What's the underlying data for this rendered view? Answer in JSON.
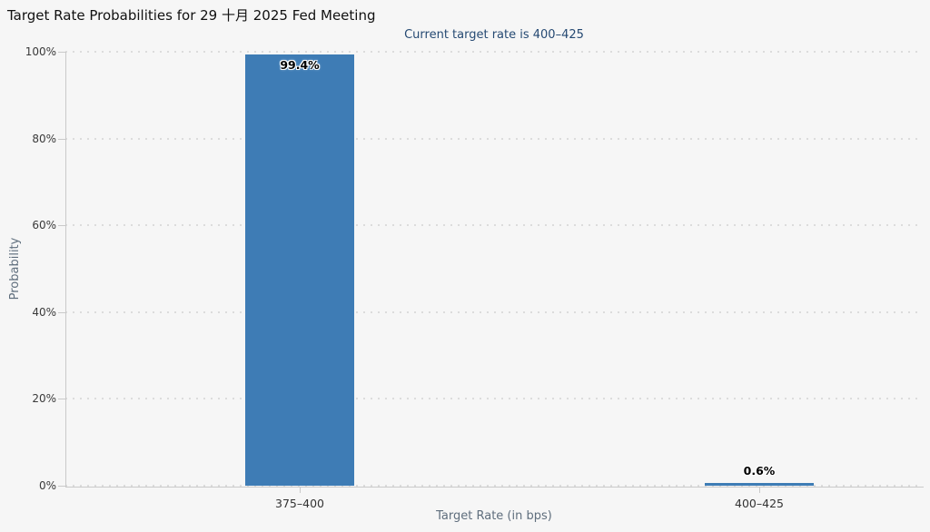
{
  "chart_data": {
    "type": "bar",
    "title": "Target Rate Probabilities for 29 十月 2025 Fed Meeting",
    "subtitle": "Current target rate is 400–425",
    "categories": [
      "375–400",
      "400–425"
    ],
    "values": [
      99.4,
      0.6
    ],
    "value_labels": [
      "99.4%",
      "0.6%"
    ],
    "xlabel": "Target Rate (in bps)",
    "ylabel": "Probability",
    "ylim": [
      0,
      100
    ],
    "ytick_step": 20,
    "ytick_labels": [
      "0%",
      "20%",
      "40%",
      "60%",
      "80%",
      "100%"
    ],
    "grid": "horizontal-dotted",
    "legend": "none",
    "colors": {
      "background": "#f6f6f6",
      "bar": "#3e7cb5",
      "title_text": "#111111",
      "subtitle_text": "#264a73",
      "axis_text": "#3a3a3a",
      "axis_title_text": "#5f6e7d",
      "grid_dots": "#dcdcdc",
      "axis_line": "#c9c9c9"
    }
  }
}
